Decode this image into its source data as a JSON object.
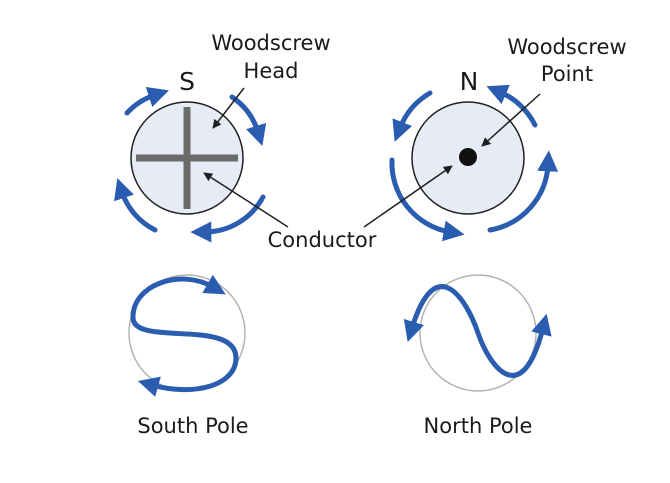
{
  "labels": {
    "woodscrew_head": [
      "Woodscrew",
      "Head"
    ],
    "woodscrew_point": [
      "Woodscrew",
      "Point"
    ],
    "south_letter": "S",
    "north_letter": "N",
    "conductor": "Conductor",
    "south_pole": "South Pole",
    "north_pole": "North Pole"
  },
  "colors": {
    "arrow_blue": "#2a5db0",
    "circle_fill": "#e6ebf5",
    "circle_stroke": "#1f1f1f",
    "cross": "#6b6b6b",
    "pole_circle_stroke": "#b3b3b3"
  }
}
